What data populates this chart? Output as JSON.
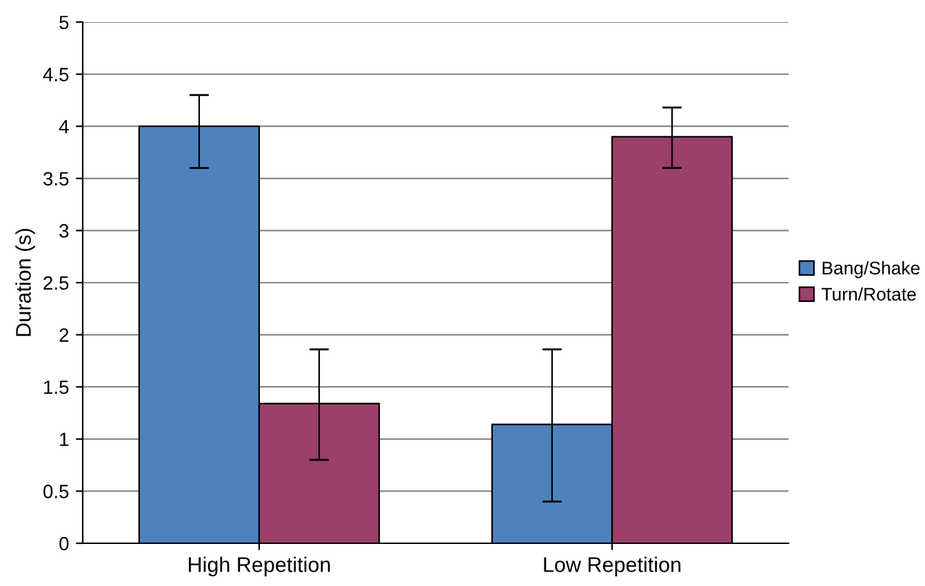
{
  "chart_data": {
    "type": "bar",
    "ylabel": "Duration (s)",
    "categories": [
      "High Repetition",
      "Low Repetition"
    ],
    "series": [
      {
        "name": "Bang/Shake",
        "color": "#4f81bd",
        "values": [
          4.0,
          1.14
        ],
        "errors": [
          [
            3.6,
            4.3
          ],
          [
            0.4,
            1.86
          ]
        ]
      },
      {
        "name": "Turn/Rotate",
        "color": "#9b3f6b",
        "values": [
          1.34,
          3.9
        ],
        "errors": [
          [
            0.8,
            1.86
          ],
          [
            3.6,
            4.18
          ]
        ]
      }
    ],
    "ylim": [
      0,
      5
    ],
    "yticks": [
      0,
      0.5,
      1,
      1.5,
      2,
      2.5,
      3,
      3.5,
      4,
      4.5,
      5
    ],
    "grid": "y",
    "legend": "right"
  }
}
